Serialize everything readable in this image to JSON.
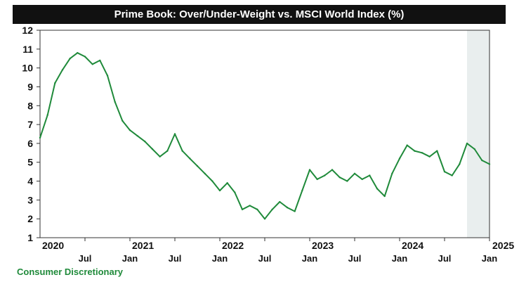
{
  "colors": {
    "series": "#1f8a3a",
    "shade": "#e9eeee",
    "title_bg": "#111111",
    "title_text": "#ffffff"
  },
  "chart_data": {
    "type": "line",
    "title": "Prime Book: Over/Under-Weight vs. MSCI World Index (%)",
    "xlabel": "",
    "ylabel": "",
    "ylim": [
      1,
      12
    ],
    "yticks": [
      1,
      2,
      3,
      4,
      5,
      6,
      7,
      8,
      9,
      10,
      11,
      12
    ],
    "xlim": [
      "2020-01",
      "2025-01"
    ],
    "month_ticks": [
      {
        "label": "Jul",
        "date": "2020-07"
      },
      {
        "label": "Jan",
        "date": "2021-01"
      },
      {
        "label": "Jul",
        "date": "2021-07"
      },
      {
        "label": "Jan",
        "date": "2022-01"
      },
      {
        "label": "Jul",
        "date": "2022-07"
      },
      {
        "label": "Jan",
        "date": "2023-01"
      },
      {
        "label": "Jul",
        "date": "2023-07"
      },
      {
        "label": "Jan",
        "date": "2024-01"
      },
      {
        "label": "Jul",
        "date": "2024-07"
      },
      {
        "label": "Jan",
        "date": "2025-01"
      }
    ],
    "year_labels": [
      {
        "label": "2020",
        "date": "2020-01"
      },
      {
        "label": "2021",
        "date": "2021-01"
      },
      {
        "label": "2022",
        "date": "2022-01"
      },
      {
        "label": "2023",
        "date": "2023-01"
      },
      {
        "label": "2024",
        "date": "2024-01"
      },
      {
        "label": "2025",
        "date": "2025-01"
      }
    ],
    "shaded_region": [
      "2024-10",
      "2025-01"
    ],
    "grid": false,
    "legend_text": "Consumer Discretionary",
    "series": [
      {
        "name": "Consumer Discretionary",
        "x": [
          "2020-01",
          "2020-02",
          "2020-03",
          "2020-04",
          "2020-05",
          "2020-06",
          "2020-07",
          "2020-08",
          "2020-09",
          "2020-10",
          "2020-11",
          "2020-12",
          "2021-01",
          "2021-02",
          "2021-03",
          "2021-04",
          "2021-05",
          "2021-06",
          "2021-07",
          "2021-08",
          "2021-09",
          "2021-10",
          "2021-11",
          "2021-12",
          "2022-01",
          "2022-02",
          "2022-03",
          "2022-04",
          "2022-05",
          "2022-06",
          "2022-07",
          "2022-08",
          "2022-09",
          "2022-10",
          "2022-11",
          "2022-12",
          "2023-01",
          "2023-02",
          "2023-03",
          "2023-04",
          "2023-05",
          "2023-06",
          "2023-07",
          "2023-08",
          "2023-09",
          "2023-10",
          "2023-11",
          "2023-12",
          "2024-01",
          "2024-02",
          "2024-03",
          "2024-04",
          "2024-05",
          "2024-06",
          "2024-07",
          "2024-08",
          "2024-09",
          "2024-10",
          "2024-11",
          "2024-12",
          "2025-01"
        ],
        "y": [
          6.3,
          7.5,
          9.2,
          9.9,
          10.5,
          10.8,
          10.6,
          10.2,
          10.4,
          9.6,
          8.2,
          7.2,
          6.7,
          6.4,
          6.1,
          5.7,
          5.3,
          5.6,
          6.5,
          5.6,
          5.2,
          4.8,
          4.4,
          4.0,
          3.5,
          3.9,
          3.4,
          2.5,
          2.7,
          2.5,
          2.0,
          2.5,
          2.9,
          2.6,
          2.4,
          3.5,
          4.6,
          4.1,
          4.3,
          4.6,
          4.2,
          4.0,
          4.4,
          4.1,
          4.3,
          3.6,
          3.2,
          4.4,
          5.2,
          5.9,
          5.6,
          5.5,
          5.3,
          5.6,
          4.5,
          4.3,
          4.9,
          6.0,
          5.7,
          5.1,
          4.9
        ]
      }
    ]
  }
}
